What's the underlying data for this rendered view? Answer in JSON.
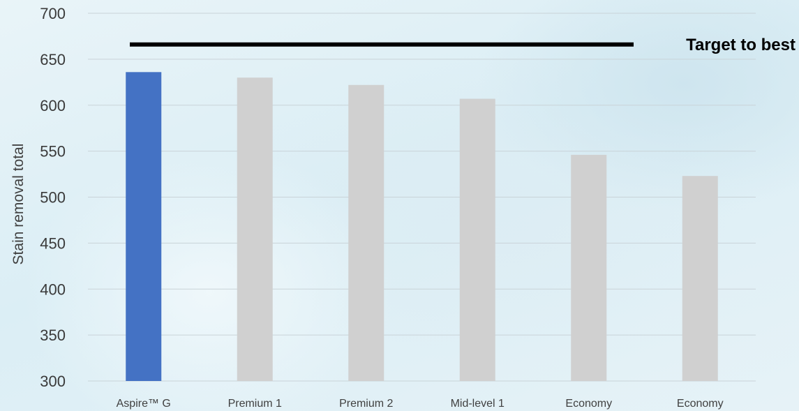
{
  "chart_data": {
    "type": "bar",
    "categories": [
      "Aspire™ G",
      "Premium 1",
      "Premium 2",
      "Mid-level 1",
      "Economy",
      "Economy"
    ],
    "values": [
      636,
      630,
      622,
      607,
      546,
      523
    ],
    "bar_colors": [
      "#4472c4",
      "#d0d0d0",
      "#d0d0d0",
      "#d0d0d0",
      "#d0d0d0",
      "#d0d0d0"
    ],
    "highlight_color": "#4472c4",
    "default_bar_color": "#d0d0d0",
    "title": "",
    "xlabel": "",
    "ylabel": "Stain removal total",
    "ylim": [
      300,
      700
    ],
    "yticks": [
      300,
      350,
      400,
      450,
      500,
      550,
      600,
      650,
      700
    ],
    "grid": true,
    "target_line": {
      "label": "Target to best",
      "value": 666,
      "color": "#000000"
    }
  }
}
